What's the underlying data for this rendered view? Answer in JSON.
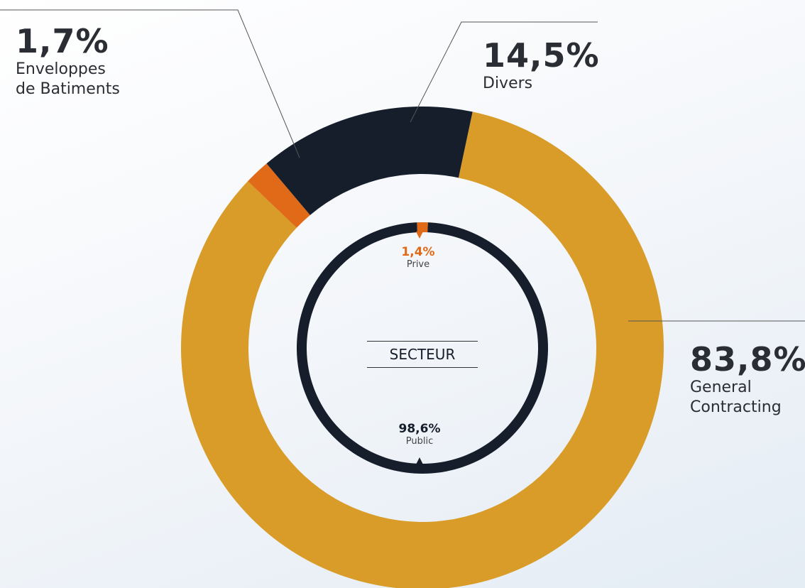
{
  "chart_data": {
    "type": "donut",
    "center_label": "SECTEUR",
    "rings": [
      {
        "series": [
          {
            "name": "General Contracting",
            "value": 83.8,
            "value_label": "83,8%",
            "color": "#D99C28"
          },
          {
            "name": "Enveloppes de Batiments",
            "value": 1.7,
            "value_label": "1,7%",
            "color": "#E06A17"
          },
          {
            "name": "Divers",
            "value": 14.5,
            "value_label": "14,5%",
            "color": "#161D2B"
          }
        ]
      },
      {
        "series": [
          {
            "name": "Prive",
            "value": 1.4,
            "value_label": "1,4%",
            "color": "#E06A17"
          },
          {
            "name": "Public",
            "value": 98.6,
            "value_label": "98,6%",
            "color": "#161D2B"
          }
        ]
      }
    ]
  }
}
